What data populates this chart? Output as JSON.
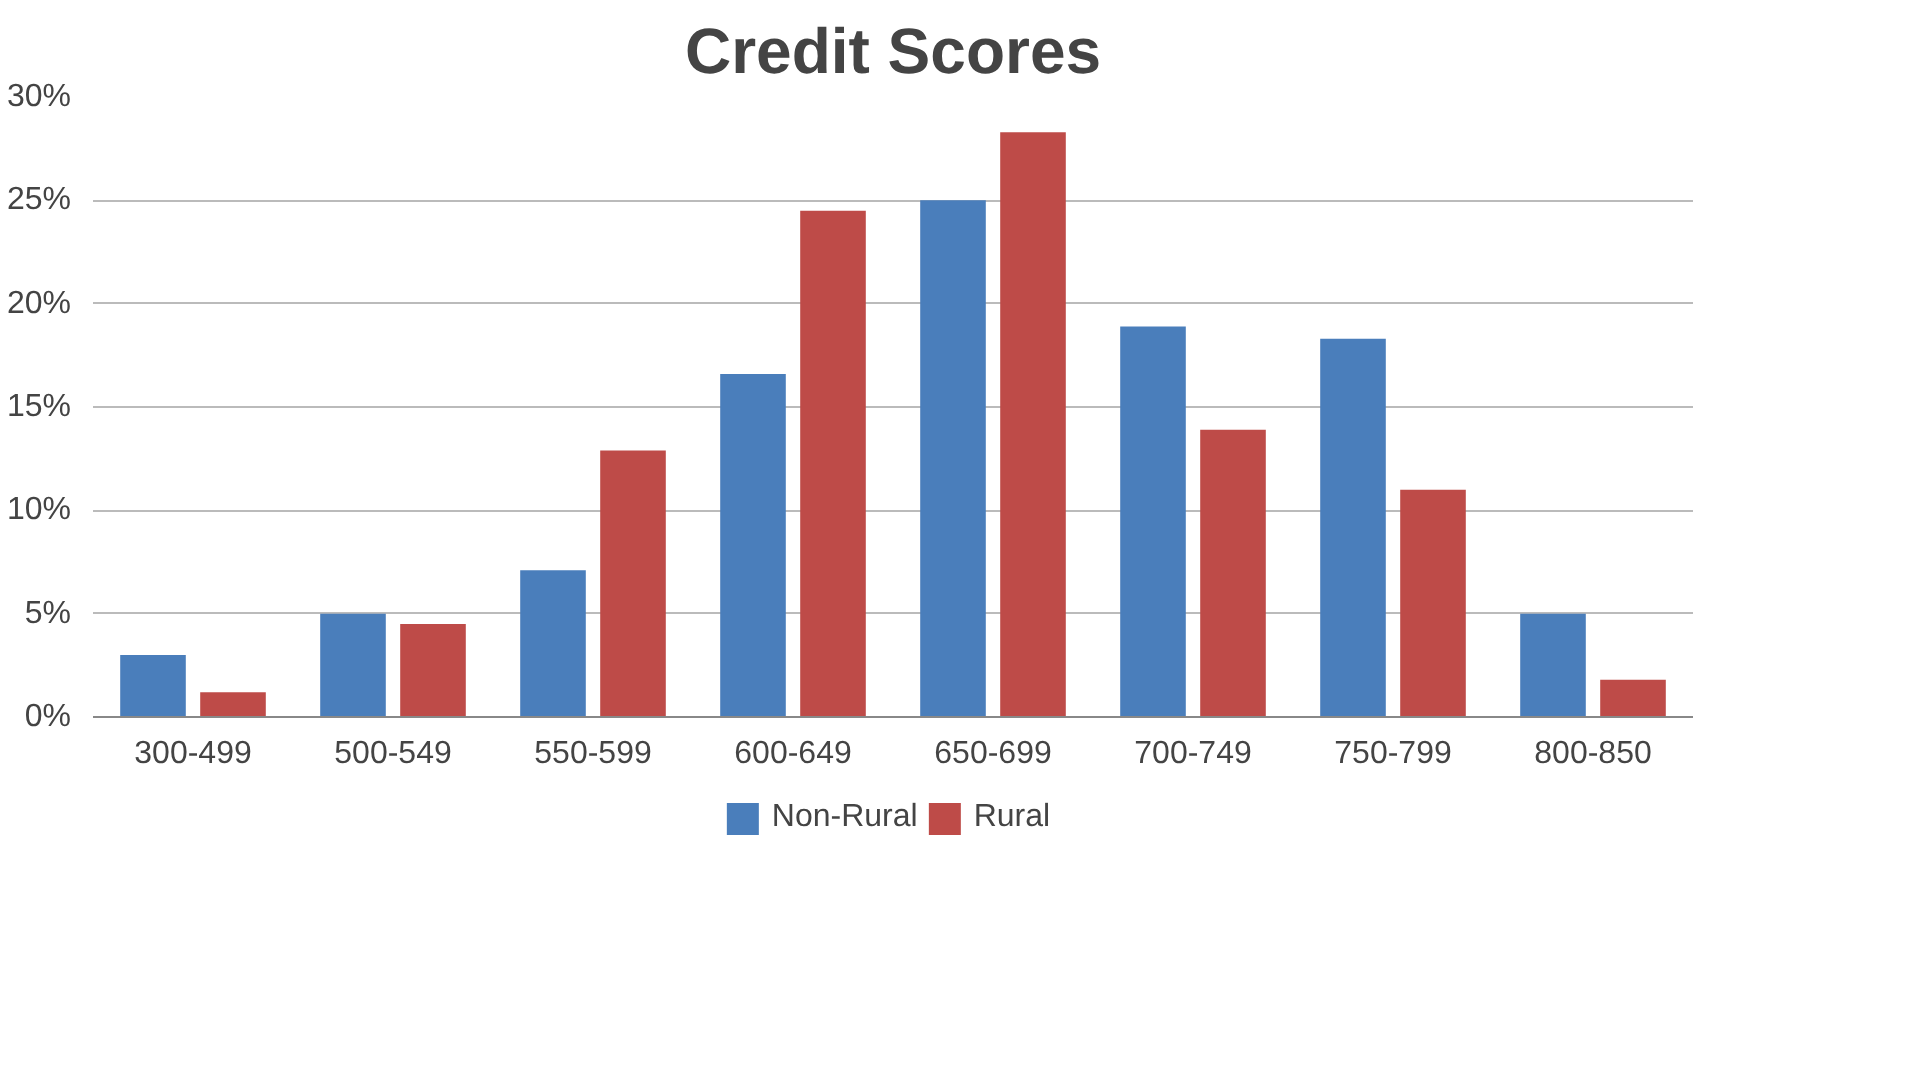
{
  "chart_data": {
    "type": "bar",
    "title": "Credit Scores",
    "categories": [
      "300-499",
      "500-549",
      "550-599",
      "600-649",
      "650-699",
      "700-749",
      "750-799",
      "800-850"
    ],
    "series": [
      {
        "name": "Non-Rural",
        "color": "#4a7ebb",
        "values": [
          3,
          5,
          7.1,
          16.6,
          25,
          18.9,
          18.3,
          5
        ]
      },
      {
        "name": "Rural",
        "color": "#be4b48",
        "values": [
          1.2,
          4.5,
          12.9,
          24.5,
          28.3,
          13.9,
          11,
          1.8
        ]
      }
    ],
    "ylim": [
      0,
      30
    ],
    "yticks": [
      {
        "value": 0,
        "label": "0%"
      },
      {
        "value": 5,
        "label": "5%"
      },
      {
        "value": 10,
        "label": "10%"
      },
      {
        "value": 15,
        "label": "15%"
      },
      {
        "value": 20,
        "label": "20%"
      },
      {
        "value": 25,
        "label": "25%"
      },
      {
        "value": 30,
        "label": "30%"
      }
    ],
    "grid": "y",
    "legend": "bottom"
  }
}
